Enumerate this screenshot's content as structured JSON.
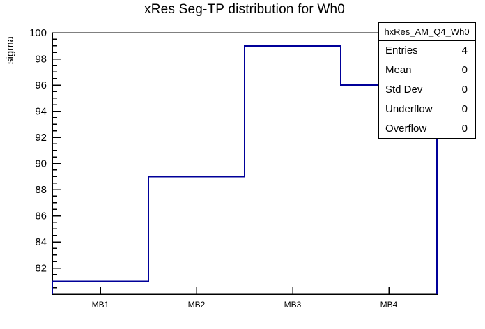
{
  "title": "xRes Seg-TP distribution for Wh0",
  "y_axis": {
    "label": "sigma",
    "min": 80,
    "max": 100,
    "major_ticks": [
      82,
      84,
      86,
      88,
      90,
      92,
      94,
      96,
      98,
      100
    ],
    "minor_step": 0.5
  },
  "x_axis": {
    "categories": [
      "MB1",
      "MB2",
      "MB3",
      "MB4"
    ]
  },
  "stats_box": {
    "title": "hxRes_AM_Q4_Wh0",
    "rows": [
      {
        "label": "Entries",
        "value": "4"
      },
      {
        "label": "Mean",
        "value": "0"
      },
      {
        "label": "Std Dev",
        "value": "0"
      },
      {
        "label": "Underflow",
        "value": "0"
      },
      {
        "label": "Overflow",
        "value": "0"
      }
    ]
  },
  "colors": {
    "histogram_line": "#000099",
    "frame": "#000000",
    "background": "#ffffff"
  },
  "chart_data": {
    "type": "bar",
    "style": "step-histogram-outline",
    "categories": [
      "MB1",
      "MB2",
      "MB3",
      "MB4"
    ],
    "values": [
      81,
      89,
      99,
      96
    ],
    "title": "xRes Seg-TP distribution for Wh0",
    "xlabel": "",
    "ylabel": "sigma",
    "ylim": [
      80,
      100
    ],
    "y_major_tick_interval": 2,
    "grid": false,
    "legend": false,
    "stats": {
      "entries": 4,
      "mean": 0,
      "std_dev": 0,
      "underflow": 0,
      "overflow": 0
    }
  }
}
